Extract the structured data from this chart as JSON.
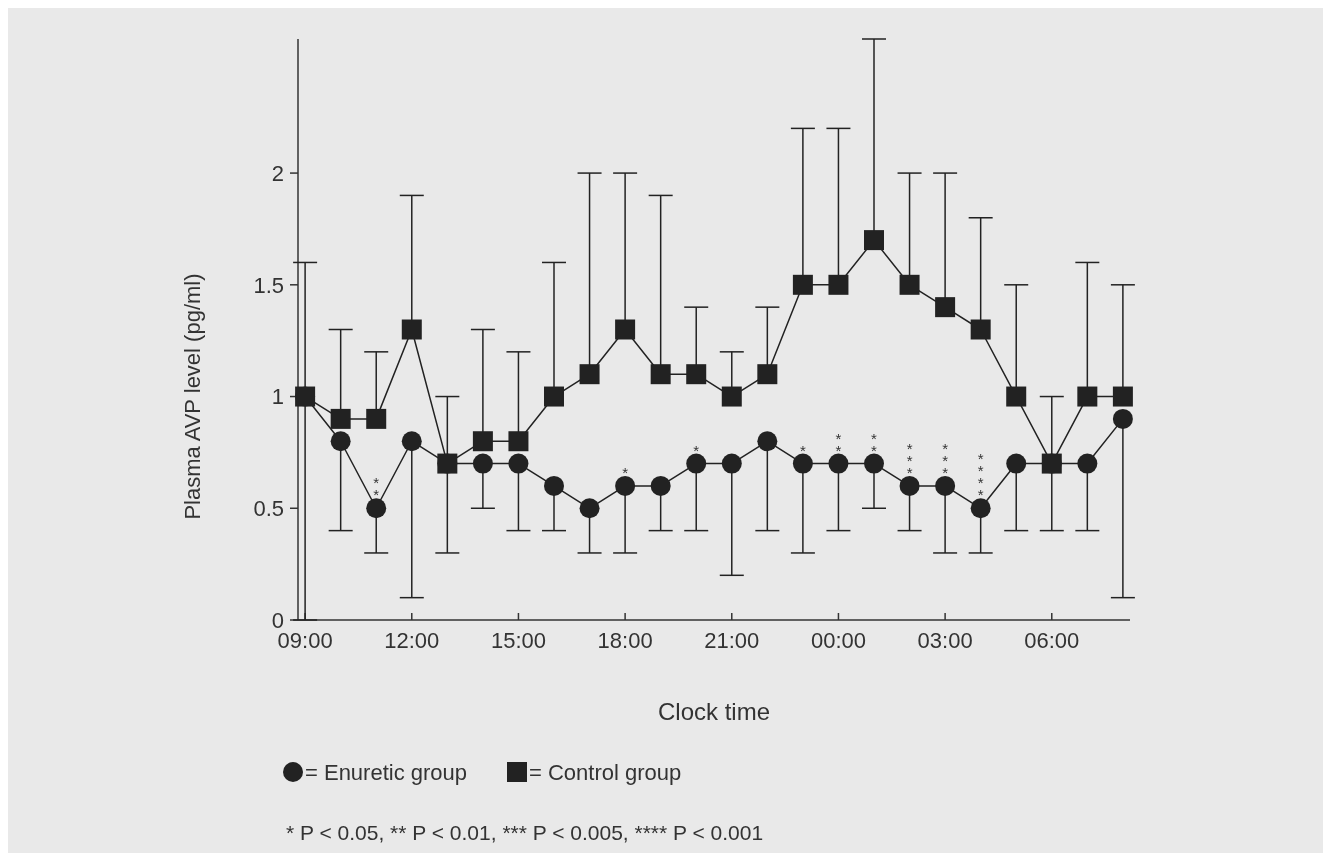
{
  "chart_data": {
    "type": "line",
    "xlabel": "Clock time",
    "ylabel": "Plasma AVP level (pg/ml)",
    "x": [
      "2000-01-01T09:00",
      "2000-01-01T10:00",
      "2000-01-01T11:00",
      "2000-01-01T12:00",
      "2000-01-01T13:00",
      "2000-01-01T14:00",
      "2000-01-01T15:00",
      "2000-01-01T16:00",
      "2000-01-01T17:00",
      "2000-01-01T18:00",
      "2000-01-01T19:00",
      "2000-01-01T20:00",
      "2000-01-01T21:00",
      "2000-01-01T22:00",
      "2000-01-01T23:00",
      "2000-01-02T00:00",
      "2000-01-02T01:00",
      "2000-01-02T02:00",
      "2000-01-02T03:00",
      "2000-01-02T04:00",
      "2000-01-02T05:00",
      "2000-01-02T06:00",
      "2000-01-02T07:00",
      "2000-01-02T08:00"
    ],
    "xlim": [
      "2000-01-01T08:48",
      "2000-01-02T08:12"
    ],
    "xticks": [
      {
        "value": "2000-01-01T09:00",
        "label": "09:00"
      },
      {
        "value": "2000-01-01T12:00",
        "label": "12:00"
      },
      {
        "value": "2000-01-01T15:00",
        "label": "15:00"
      },
      {
        "value": "2000-01-01T18:00",
        "label": "18:00"
      },
      {
        "value": "2000-01-01T21:00",
        "label": "21:00"
      },
      {
        "value": "2000-01-02T00:00",
        "label": "00:00"
      },
      {
        "value": "2000-01-02T03:00",
        "label": "03:00"
      },
      {
        "value": "2000-01-02T06:00",
        "label": "06:00"
      }
    ],
    "ylim": [
      0,
      2.6
    ],
    "yticks": [
      0,
      0.5,
      1,
      1.5,
      2
    ],
    "legend": "bottom",
    "grid": false,
    "series": [
      {
        "name": "= Enuretic group",
        "color": "#222222",
        "marker": "circle",
        "values": [
          1.0,
          0.8,
          0.5,
          0.8,
          0.7,
          0.7,
          0.7,
          0.6,
          0.5,
          0.6,
          0.6,
          0.7,
          0.7,
          0.8,
          0.7,
          0.7,
          0.7,
          0.6,
          0.6,
          0.5,
          0.7,
          0.7,
          0.7,
          0.9
        ],
        "errors": [
          [
            0,
            1.0
          ],
          [
            0.4,
            0.8
          ],
          [
            0.3,
            0.5
          ],
          [
            0.1,
            0.8
          ],
          [
            0.3,
            0.7
          ],
          [
            0.5,
            0.7
          ],
          [
            0.4,
            0.7
          ],
          [
            0.4,
            0.6
          ],
          [
            0.3,
            0.5
          ],
          [
            0.3,
            0.6
          ],
          [
            0.4,
            0.6
          ],
          [
            0.4,
            0.7
          ],
          [
            0.2,
            0.7
          ],
          [
            0.4,
            0.8
          ],
          [
            0.3,
            0.7
          ],
          [
            0.4,
            0.7
          ],
          [
            0.5,
            0.7
          ],
          [
            0.4,
            0.6
          ],
          [
            0.3,
            0.6
          ],
          [
            0.3,
            0.5
          ],
          [
            0.4,
            0.7
          ],
          [
            0.4,
            0.7
          ],
          [
            0.4,
            0.7
          ],
          [
            0.1,
            0.9
          ]
        ]
      },
      {
        "name": "= Control group",
        "color": "#222222",
        "marker": "square",
        "values": [
          1.0,
          0.9,
          0.9,
          1.3,
          0.7,
          0.8,
          0.8,
          1.0,
          1.1,
          1.3,
          1.1,
          1.1,
          1.0,
          1.1,
          1.5,
          1.5,
          1.7,
          1.5,
          1.4,
          1.3,
          1.0,
          0.7,
          1.0,
          1.0
        ],
        "errors": [
          [
            1.0,
            1.6
          ],
          [
            0.9,
            1.3
          ],
          [
            0.9,
            1.2
          ],
          [
            1.3,
            1.9
          ],
          [
            0.7,
            1.0
          ],
          [
            0.8,
            1.3
          ],
          [
            0.8,
            1.2
          ],
          [
            1.0,
            1.6
          ],
          [
            1.1,
            2.0
          ],
          [
            1.3,
            2.0
          ],
          [
            1.1,
            1.9
          ],
          [
            1.1,
            1.4
          ],
          [
            1.0,
            1.2
          ],
          [
            1.1,
            1.4
          ],
          [
            1.5,
            2.2
          ],
          [
            1.5,
            2.2
          ],
          [
            1.7,
            2.6
          ],
          [
            1.5,
            2.0
          ],
          [
            1.4,
            2.0
          ],
          [
            1.3,
            1.8
          ],
          [
            1.0,
            1.5
          ],
          [
            0.7,
            1.0
          ],
          [
            1.0,
            1.6
          ],
          [
            1.0,
            1.5
          ]
        ]
      }
    ],
    "annotations": [
      {
        "text": "**",
        "x": "2000-01-01T11:00",
        "y": 0.5
      },
      {
        "text": "*",
        "x": "2000-01-01T18:00",
        "y": 0.6
      },
      {
        "text": "*",
        "x": "2000-01-01T20:00",
        "y": 0.7
      },
      {
        "text": "*",
        "x": "2000-01-01T23:00",
        "y": 0.7
      },
      {
        "text": "**",
        "x": "2000-01-02T00:00",
        "y": 0.7
      },
      {
        "text": "**",
        "x": "2000-01-02T01:00",
        "y": 0.7
      },
      {
        "text": "***",
        "x": "2000-01-02T02:00",
        "y": 0.6
      },
      {
        "text": "***",
        "x": "2000-01-02T03:00",
        "y": 0.6
      },
      {
        "text": "****",
        "x": "2000-01-02T04:00",
        "y": 0.5
      },
      "* P < 0.05, ** P < 0.01, *** P < 0.005, **** P < 0.001"
    ]
  }
}
